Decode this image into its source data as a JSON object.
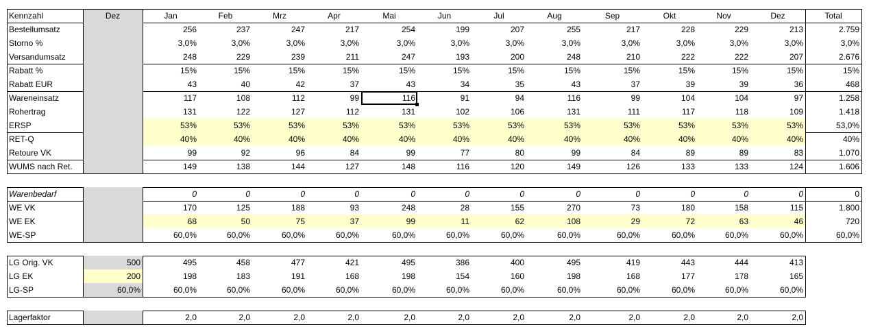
{
  "header": {
    "kennzahl": "Kennzahl",
    "prev": "Dez",
    "months": [
      "Jan",
      "Feb",
      "Mrz",
      "Apr",
      "Mai",
      "Jun",
      "Jul",
      "Aug",
      "Sep",
      "Okt",
      "Nov",
      "Dez"
    ],
    "total": "Total"
  },
  "sections": [
    {
      "rows": [
        {
          "label": "Bestellumsatz",
          "values": [
            "256",
            "237",
            "247",
            "217",
            "254",
            "199",
            "207",
            "255",
            "217",
            "228",
            "229",
            "213"
          ],
          "total": "2.759"
        },
        {
          "label": "Storno %",
          "values": [
            "3,0%",
            "3,0%",
            "3,0%",
            "3,0%",
            "3,0%",
            "3,0%",
            "3,0%",
            "3,0%",
            "3,0%",
            "3,0%",
            "3,0%",
            "3,0%"
          ],
          "total": "3,0%"
        },
        {
          "label": "Versandumsatz",
          "values": [
            "248",
            "229",
            "239",
            "211",
            "247",
            "193",
            "200",
            "248",
            "210",
            "222",
            "222",
            "207"
          ],
          "total": "2.676",
          "sep_after": true
        },
        {
          "label": "Rabatt %",
          "values": [
            "15%",
            "15%",
            "15%",
            "15%",
            "15%",
            "15%",
            "15%",
            "15%",
            "15%",
            "15%",
            "15%",
            "15%"
          ],
          "total": "15%"
        },
        {
          "label": "Rabatt EUR",
          "values": [
            "43",
            "40",
            "42",
            "37",
            "43",
            "34",
            "35",
            "43",
            "37",
            "39",
            "39",
            "36"
          ],
          "total": "468",
          "sep_after": true
        },
        {
          "label": "Wareneinsatz",
          "values": [
            "117",
            "108",
            "112",
            "99",
            "116",
            "91",
            "94",
            "116",
            "99",
            "104",
            "104",
            "97"
          ],
          "total": "1.258"
        },
        {
          "label": "Rohertrag",
          "values": [
            "131",
            "122",
            "127",
            "112",
            "131",
            "102",
            "106",
            "131",
            "111",
            "117",
            "118",
            "109"
          ],
          "total": "1.418"
        },
        {
          "label": "ERSP",
          "values": [
            "53%",
            "53%",
            "53%",
            "53%",
            "53%",
            "53%",
            "53%",
            "53%",
            "53%",
            "53%",
            "53%",
            "53%"
          ],
          "total": "53,0%",
          "highlight": true,
          "sep_after": true
        },
        {
          "label": "RET-Q",
          "values": [
            "40%",
            "40%",
            "40%",
            "40%",
            "40%",
            "40%",
            "40%",
            "40%",
            "40%",
            "40%",
            "40%",
            "40%"
          ],
          "total": "40%",
          "highlight": true
        },
        {
          "label": "Retoure VK",
          "values": [
            "99",
            "92",
            "96",
            "84",
            "99",
            "77",
            "80",
            "99",
            "84",
            "89",
            "89",
            "83"
          ],
          "total": "1.070",
          "sep_after": true
        },
        {
          "label": "WUMS nach Ret.",
          "values": [
            "149",
            "138",
            "144",
            "127",
            "148",
            "116",
            "120",
            "149",
            "126",
            "133",
            "133",
            "124"
          ],
          "total": "1.606",
          "sep_after": true
        }
      ]
    },
    {
      "rows": [
        {
          "label": "Warenbedarf",
          "values": [
            "0",
            "0",
            "0",
            "0",
            "0",
            "0",
            "0",
            "0",
            "0",
            "0",
            "0",
            "0"
          ],
          "total": "0",
          "italic": true,
          "sep_after": true
        },
        {
          "label": "WE VK",
          "values": [
            "170",
            "125",
            "188",
            "93",
            "248",
            "28",
            "155",
            "270",
            "73",
            "180",
            "158",
            "115"
          ],
          "total": "1.800"
        },
        {
          "label": "WE EK",
          "values": [
            "68",
            "50",
            "75",
            "37",
            "99",
            "11",
            "62",
            "108",
            "29",
            "72",
            "63",
            "46"
          ],
          "total": "720",
          "highlight": true
        },
        {
          "label": "WE-SP",
          "values": [
            "60,0%",
            "60,0%",
            "60,0%",
            "60,0%",
            "60,0%",
            "60,0%",
            "60,0%",
            "60,0%",
            "60,0%",
            "60,0%",
            "60,0%",
            "60,0%"
          ],
          "total": "60,0%",
          "sep_after": true
        }
      ]
    },
    {
      "rows": [
        {
          "label": "LG Orig. VK",
          "prev": "500",
          "values": [
            "495",
            "458",
            "477",
            "421",
            "495",
            "386",
            "400",
            "495",
            "419",
            "443",
            "444",
            "413"
          ]
        },
        {
          "label": "LG EK",
          "prev": "200",
          "prev_highlight": true,
          "values": [
            "198",
            "183",
            "191",
            "168",
            "198",
            "154",
            "160",
            "198",
            "168",
            "177",
            "178",
            "165"
          ]
        },
        {
          "label": "LG-SP",
          "prev": "60,0%",
          "values": [
            "60,0%",
            "60,0%",
            "60,0%",
            "60,0%",
            "60,0%",
            "60,0%",
            "60,0%",
            "60,0%",
            "60,0%",
            "60,0%",
            "60,0%",
            "60,0%"
          ],
          "sep_after": true
        }
      ]
    },
    {
      "rows": [
        {
          "label": "Lagerfaktor",
          "values": [
            "2,0",
            "2,0",
            "2,0",
            "2,0",
            "2,0",
            "2,0",
            "2,0",
            "2,0",
            "2,0",
            "2,0",
            "2,0",
            "2,0"
          ],
          "sep_after": true
        }
      ]
    }
  ],
  "selected_cell": {
    "row_label": "Wareneinsatz",
    "month": "Mai"
  },
  "colors": {
    "grey": "#d9d9d9",
    "highlight": "#ffffcc",
    "border": "#000000"
  }
}
